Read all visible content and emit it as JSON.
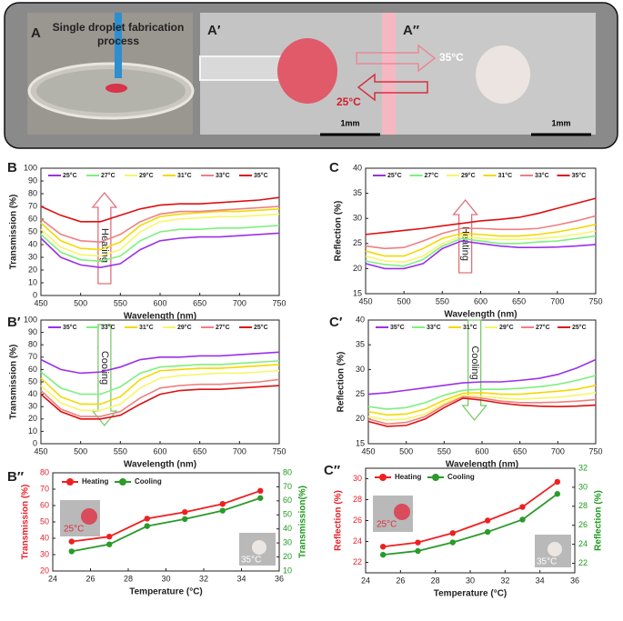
{
  "photo_panel": {
    "label_a": "A",
    "caption": [
      "Single droplet fabrication",
      "process"
    ],
    "label_a1": "A′",
    "label_a2": "A″",
    "hot": "35°C",
    "cold": "25°C",
    "scale_a1": "1mm",
    "scale_a2": "1mm"
  },
  "chart_data": [
    {
      "type": "line",
      "panel_label": "B",
      "xlabel": "Wavelength (nm)",
      "ylabel": "Transmission (%)",
      "annotation": "Heating",
      "x": [
        450,
        475,
        500,
        525,
        550,
        575,
        600,
        625,
        650,
        675,
        700,
        725,
        750
      ],
      "xlim": [
        450,
        750
      ],
      "xticks": [
        450,
        500,
        550,
        600,
        650,
        700,
        750
      ],
      "ylim": [
        0,
        100
      ],
      "yticks": [
        0,
        10,
        20,
        30,
        40,
        50,
        60,
        70,
        80,
        90,
        100
      ],
      "series": [
        {
          "name": "25°C",
          "color": "#9b30e8",
          "values": [
            45,
            30,
            24,
            22,
            25,
            36,
            43,
            45,
            46,
            46,
            47,
            48,
            49
          ]
        },
        {
          "name": "27°C",
          "color": "#7ef07e",
          "values": [
            48,
            34,
            28,
            27,
            31,
            43,
            50,
            52,
            52,
            53,
            53,
            54,
            55
          ]
        },
        {
          "name": "29°C",
          "color": "#f6f66a",
          "values": [
            52,
            38,
            32,
            31,
            36,
            50,
            58,
            60,
            61,
            62,
            62,
            63,
            64
          ]
        },
        {
          "name": "31°C",
          "color": "#f5d800",
          "values": [
            57,
            43,
            37,
            36,
            42,
            55,
            62,
            64,
            65,
            66,
            66,
            67,
            68
          ]
        },
        {
          "name": "33°C",
          "color": "#ee8080",
          "values": [
            60,
            48,
            43,
            42,
            48,
            58,
            64,
            66,
            66,
            67,
            68,
            69,
            70
          ]
        },
        {
          "name": "35°C",
          "color": "#dd1010",
          "values": [
            70,
            63,
            58,
            58,
            63,
            68,
            71,
            72,
            72,
            73,
            74,
            75,
            77
          ]
        }
      ]
    },
    {
      "type": "line",
      "panel_label": "C",
      "xlabel": "Wavelength (nm)",
      "ylabel": "Reflection (%)",
      "annotation": "Heating",
      "x": [
        450,
        475,
        500,
        525,
        550,
        575,
        600,
        625,
        650,
        675,
        700,
        725,
        750
      ],
      "xlim": [
        450,
        750
      ],
      "xticks": [
        450,
        500,
        550,
        600,
        650,
        700,
        750
      ],
      "ylim": [
        15,
        40
      ],
      "yticks": [
        15,
        20,
        25,
        30,
        35,
        40
      ],
      "series": [
        {
          "name": "25°C",
          "color": "#9b30e8",
          "values": [
            21,
            20,
            20,
            21,
            24,
            25.5,
            25,
            24.5,
            24.2,
            24.2,
            24.3,
            24.5,
            24.8
          ]
        },
        {
          "name": "27°C",
          "color": "#7ef07e",
          "values": [
            21.5,
            20.8,
            20.5,
            21.8,
            24.5,
            26,
            25.5,
            25,
            25,
            25.3,
            25.5,
            26,
            26.5
          ]
        },
        {
          "name": "29°C",
          "color": "#f6f66a",
          "values": [
            22.5,
            21.5,
            21.3,
            22.5,
            25,
            26.5,
            26,
            25.8,
            25.8,
            26,
            26.3,
            26.8,
            27.5
          ]
        },
        {
          "name": "31°C",
          "color": "#f5d800",
          "values": [
            23.5,
            22.5,
            22.5,
            24,
            26,
            27,
            26.8,
            26.5,
            26.5,
            26.8,
            27.3,
            28,
            28.8
          ]
        },
        {
          "name": "33°C",
          "color": "#ee8080",
          "values": [
            24.5,
            24,
            24.2,
            25.5,
            27,
            28,
            28,
            27.8,
            27.8,
            28,
            28.7,
            29.5,
            30.5
          ]
        },
        {
          "name": "35°C",
          "color": "#dd1010",
          "values": [
            26.8,
            27.2,
            27.6,
            28,
            28.5,
            29,
            29.5,
            29.8,
            30.2,
            31,
            32,
            33,
            34
          ]
        }
      ]
    },
    {
      "type": "line",
      "panel_label": "B′",
      "xlabel": "Wavelength (nm)",
      "ylabel": "Transmission (%)",
      "annotation": "Cooling",
      "x": [
        450,
        475,
        500,
        525,
        550,
        575,
        600,
        625,
        650,
        675,
        700,
        725,
        750
      ],
      "xlim": [
        450,
        750
      ],
      "xticks": [
        450,
        500,
        550,
        600,
        650,
        700,
        750
      ],
      "ylim": [
        0,
        100
      ],
      "yticks": [
        0,
        10,
        20,
        30,
        40,
        50,
        60,
        70,
        80,
        90,
        100
      ],
      "series": [
        {
          "name": "35°C",
          "color": "#9b30e8",
          "values": [
            68,
            60,
            57,
            58,
            62,
            68,
            70,
            70,
            71,
            71,
            72,
            73,
            74
          ]
        },
        {
          "name": "33°C",
          "color": "#7ef07e",
          "values": [
            58,
            45,
            40,
            40,
            46,
            57,
            62,
            63,
            64,
            64,
            65,
            66,
            67
          ]
        },
        {
          "name": "31°C",
          "color": "#f5d800",
          "values": [
            53,
            38,
            32,
            32,
            38,
            52,
            59,
            60,
            61,
            61,
            62,
            63,
            64
          ]
        },
        {
          "name": "29°C",
          "color": "#f6f66a",
          "values": [
            47,
            33,
            27,
            27,
            32,
            45,
            53,
            55,
            56,
            57,
            57,
            58,
            59
          ]
        },
        {
          "name": "27°C",
          "color": "#ee8080",
          "values": [
            43,
            28,
            22,
            22,
            26,
            37,
            45,
            47,
            48,
            48,
            49,
            50,
            52
          ]
        },
        {
          "name": "25°C",
          "color": "#dd1010",
          "values": [
            40,
            26,
            20,
            20,
            23,
            32,
            40,
            43,
            44,
            44,
            45,
            46,
            47
          ]
        }
      ]
    },
    {
      "type": "line",
      "panel_label": "C′",
      "xlabel": "Wavelength (nm)",
      "ylabel": "Reflection (%)",
      "annotation": "Cooling",
      "x": [
        450,
        475,
        500,
        525,
        550,
        575,
        600,
        625,
        650,
        675,
        700,
        725,
        750
      ],
      "xlim": [
        450,
        750
      ],
      "xticks": [
        450,
        500,
        550,
        600,
        650,
        700,
        750
      ],
      "ylim": [
        15,
        40
      ],
      "yticks": [
        15,
        20,
        25,
        30,
        35,
        40
      ],
      "series": [
        {
          "name": "35°C",
          "color": "#9b30e8",
          "values": [
            25,
            25.3,
            25.8,
            26.3,
            26.8,
            27.3,
            27.5,
            27.5,
            27.8,
            28.2,
            29,
            30.3,
            32
          ]
        },
        {
          "name": "33°C",
          "color": "#7ef07e",
          "values": [
            22.5,
            22,
            22.3,
            23.3,
            24.8,
            25.8,
            26,
            26,
            26.2,
            26.5,
            27,
            27.8,
            28.8
          ]
        },
        {
          "name": "31°C",
          "color": "#f5d800",
          "values": [
            21.5,
            20.8,
            21,
            22,
            23.8,
            25.2,
            25.3,
            25,
            25,
            25.3,
            25.6,
            26,
            26.8
          ]
        },
        {
          "name": "29°C",
          "color": "#f6f66a",
          "values": [
            20.5,
            19.8,
            20,
            21,
            23.2,
            24.8,
            24.6,
            24.2,
            24,
            24.2,
            24.4,
            24.8,
            25.3
          ]
        },
        {
          "name": "27°C",
          "color": "#ee8080",
          "values": [
            20,
            19,
            19.3,
            20.5,
            22.8,
            24.5,
            24.2,
            23.6,
            23.3,
            23.3,
            23.4,
            23.6,
            23.9
          ]
        },
        {
          "name": "25°C",
          "color": "#dd1010",
          "values": [
            19.5,
            18.5,
            18.7,
            20,
            22.3,
            24.2,
            23.8,
            23.2,
            22.8,
            22.6,
            22.5,
            22.6,
            22.8
          ]
        }
      ]
    },
    {
      "type": "line",
      "panel_label": "B″",
      "xlabel": "Temperature (°C)",
      "ylabel": "Transmission (%)",
      "y2label": "Transmission(%)",
      "markers": true,
      "y_axis_color": "#e8202a",
      "y2_axis_color": "#1e9a1e",
      "inset_labels": [
        "25°C",
        "35°C"
      ],
      "x": [
        25,
        27,
        29,
        31,
        33,
        35
      ],
      "xlim": [
        24,
        36
      ],
      "xticks": [
        24,
        26,
        28,
        30,
        32,
        34,
        36
      ],
      "ylim": [
        20,
        80
      ],
      "yticks": [
        20,
        30,
        40,
        50,
        60,
        70,
        80
      ],
      "y2lim": [
        10,
        80
      ],
      "y2ticks": [
        10,
        20,
        30,
        40,
        50,
        60,
        70,
        80
      ],
      "series": [
        {
          "name": "Heating",
          "color": "#ee2020",
          "values": [
            38,
            41,
            52,
            56,
            61,
            69
          ]
        },
        {
          "name": "Cooling",
          "color": "#2a9a2a",
          "axis": "y2",
          "values": [
            24,
            29,
            42,
            47,
            53,
            62
          ]
        }
      ]
    },
    {
      "type": "line",
      "panel_label": "C″",
      "xlabel": "Temperature (°C)",
      "ylabel": "Reflection (%)",
      "y2label": "Reflection (%)",
      "markers": true,
      "y_axis_color": "#e8202a",
      "y2_axis_color": "#1e9a1e",
      "inset_labels": [
        "25°C",
        "35°C"
      ],
      "x": [
        25,
        27,
        29,
        31,
        33,
        35
      ],
      "xlim": [
        24,
        36
      ],
      "xticks": [
        24,
        26,
        28,
        30,
        32,
        34,
        36
      ],
      "ylim": [
        21,
        31
      ],
      "yticks": [
        22,
        24,
        26,
        28,
        30
      ],
      "y2lim": [
        21,
        32
      ],
      "y2ticks": [
        22,
        24,
        26,
        28,
        30,
        32
      ],
      "series": [
        {
          "name": "Heating",
          "color": "#ee2020",
          "values": [
            23.5,
            23.9,
            24.8,
            26.0,
            27.3,
            29.7
          ]
        },
        {
          "name": "Cooling",
          "color": "#2a9a2a",
          "axis": "y2",
          "values": [
            22.9,
            23.3,
            24.2,
            25.3,
            26.6,
            29.3
          ]
        }
      ]
    }
  ]
}
